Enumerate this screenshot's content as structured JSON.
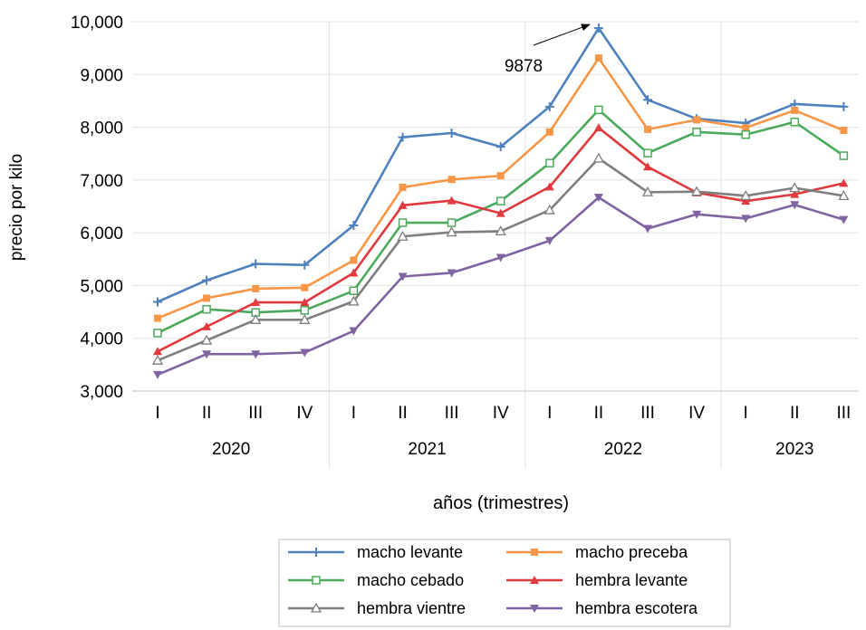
{
  "chart_data": {
    "type": "line",
    "ylabel": "precio por kilo",
    "xlabel": "años (trimestres)",
    "ylim": [
      3000,
      10000
    ],
    "yticks": [
      3000,
      4000,
      5000,
      6000,
      7000,
      8000,
      9000,
      10000
    ],
    "ytick_labels": [
      "3,000",
      "4,000",
      "5,000",
      "6,000",
      "7,000",
      "8,000",
      "9,000",
      "10,000"
    ],
    "grid": "horizontal",
    "legend_position": "bottom",
    "categories": [
      "I",
      "II",
      "III",
      "IV",
      "I",
      "II",
      "III",
      "IV",
      "I",
      "II",
      "III",
      "IV",
      "I",
      "II",
      "III"
    ],
    "years": [
      {
        "label": "2020",
        "span": 4
      },
      {
        "label": "2021",
        "span": 4
      },
      {
        "label": "2022",
        "span": 4
      },
      {
        "label": "2023",
        "span": 3
      }
    ],
    "annotation": {
      "text": "9878",
      "series": "macho levante",
      "index": 9
    },
    "series": [
      {
        "name": "macho levante",
        "color": "#4F81BD",
        "marker": "plus",
        "values": [
          4690,
          5100,
          5410,
          5390,
          6140,
          7810,
          7890,
          7630,
          8390,
          9878,
          8520,
          8160,
          8080,
          8440,
          8390
        ]
      },
      {
        "name": "macho preceba",
        "color": "#F79646",
        "marker": "square",
        "values": [
          4380,
          4760,
          4940,
          4960,
          5480,
          6860,
          7010,
          7080,
          7910,
          9310,
          7960,
          8140,
          7990,
          8320,
          7940
        ]
      },
      {
        "name": "macho cebado",
        "color": "#4BAA5C",
        "marker": "square-open",
        "values": [
          4100,
          4550,
          4490,
          4530,
          4900,
          6190,
          6190,
          6600,
          7320,
          8330,
          7510,
          7910,
          7860,
          8100,
          7460
        ]
      },
      {
        "name": "hembra levante",
        "color": "#E0393E",
        "marker": "triangle-up",
        "values": [
          3750,
          4220,
          4680,
          4680,
          5240,
          6520,
          6610,
          6370,
          6870,
          7990,
          7250,
          6760,
          6600,
          6730,
          6940
        ]
      },
      {
        "name": "hembra vientre",
        "color": "#7F7F7F",
        "marker": "triangle-open",
        "values": [
          3580,
          3960,
          4350,
          4350,
          4700,
          5930,
          6010,
          6030,
          6430,
          7410,
          6770,
          6780,
          6700,
          6850,
          6700
        ]
      },
      {
        "name": "hembra escotera",
        "color": "#8064A2",
        "marker": "triangle-down",
        "values": [
          3310,
          3700,
          3700,
          3730,
          4140,
          5170,
          5240,
          5530,
          5850,
          6670,
          6080,
          6350,
          6270,
          6530,
          6250
        ]
      }
    ]
  }
}
